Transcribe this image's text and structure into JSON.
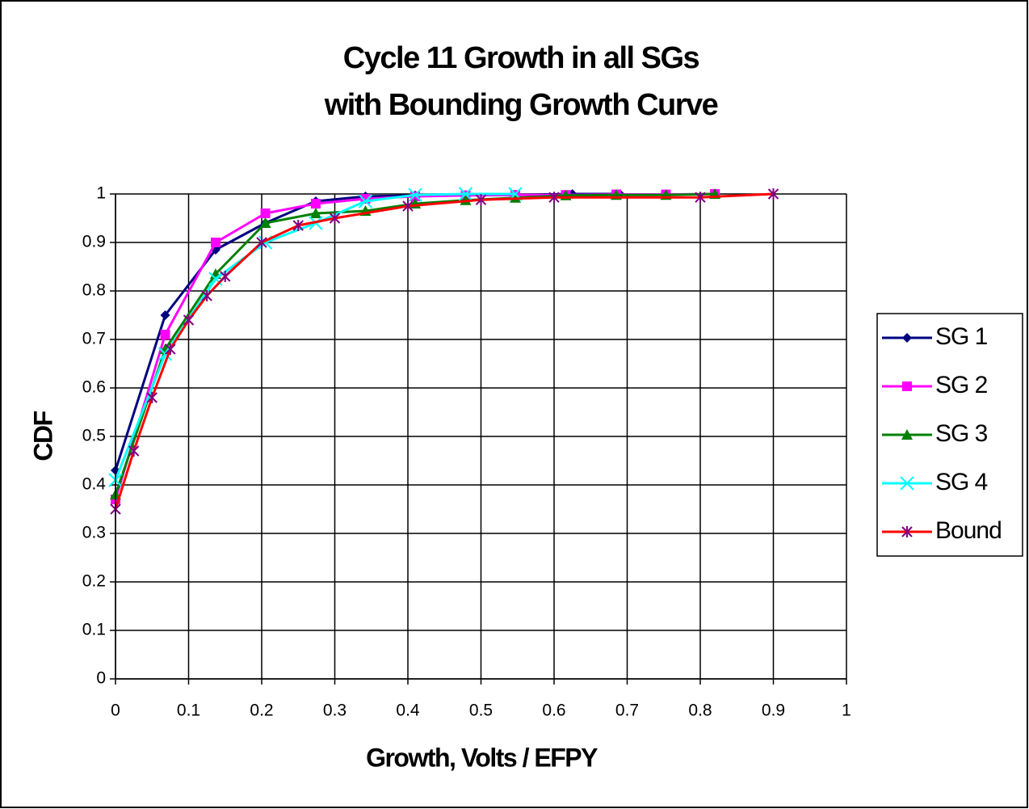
{
  "chart_data": {
    "type": "line",
    "title": [
      "Cycle 11 Growth in all SGs",
      "with Bounding Growth Curve"
    ],
    "x_label": "Growth, Volts / EFPY",
    "y_label": "CDF",
    "xlim": [
      0,
      1
    ],
    "ylim": [
      0,
      1
    ],
    "xticks": [
      0,
      0.1,
      0.2,
      0.3,
      0.4,
      0.5,
      0.6,
      0.7,
      0.8,
      0.9,
      1
    ],
    "yticks": [
      0,
      0.1,
      0.2,
      0.3,
      0.4,
      0.5,
      0.6,
      0.7,
      0.8,
      0.9,
      1
    ],
    "grid": true,
    "legend": "right",
    "series": [
      {
        "name": "SG 1",
        "color": "#000080",
        "marker": "diamond",
        "x": [
          0,
          0.068,
          0.137,
          0.205,
          0.274,
          0.342,
          0.41,
          0.479,
          0.547,
          0.625,
          0.69
        ],
        "values": [
          0.43,
          0.75,
          0.885,
          0.94,
          0.985,
          0.995,
          0.997,
          0.998,
          0.998,
          1.0,
          1.0
        ]
      },
      {
        "name": "SG 2",
        "color": "#ff00ff",
        "marker": "square",
        "x": [
          0,
          0.068,
          0.137,
          0.205,
          0.274,
          0.342,
          0.41,
          0.479,
          0.547,
          0.616,
          0.685,
          0.753,
          0.82
        ],
        "values": [
          0.37,
          0.71,
          0.9,
          0.96,
          0.98,
          0.99,
          0.995,
          0.997,
          0.998,
          0.998,
          0.999,
          0.999,
          1.0
        ]
      },
      {
        "name": "SG 3",
        "color": "#008000",
        "marker": "triangle",
        "x": [
          0,
          0.068,
          0.137,
          0.205,
          0.274,
          0.342,
          0.41,
          0.479,
          0.547,
          0.616,
          0.685,
          0.753,
          0.82
        ],
        "values": [
          0.38,
          0.68,
          0.835,
          0.94,
          0.96,
          0.965,
          0.98,
          0.987,
          0.992,
          0.997,
          0.998,
          0.998,
          1.0
        ]
      },
      {
        "name": "SG 4",
        "color": "#00ffff",
        "marker": "x",
        "x": [
          0,
          0.068,
          0.137,
          0.205,
          0.274,
          0.342,
          0.41,
          0.479,
          0.547
        ],
        "values": [
          0.41,
          0.67,
          0.825,
          0.9,
          0.94,
          0.985,
          0.998,
          1.0,
          1.0
        ]
      },
      {
        "name": "Bound",
        "color": "#ff0000",
        "marker": "star",
        "marker_color": "#800080",
        "x": [
          0,
          0.025,
          0.05,
          0.075,
          0.1,
          0.125,
          0.15,
          0.2,
          0.25,
          0.3,
          0.4,
          0.5,
          0.6,
          0.8,
          0.9
        ],
        "values": [
          0.35,
          0.47,
          0.58,
          0.68,
          0.74,
          0.79,
          0.83,
          0.9,
          0.935,
          0.95,
          0.975,
          0.988,
          0.993,
          0.993,
          1.0
        ]
      }
    ]
  }
}
